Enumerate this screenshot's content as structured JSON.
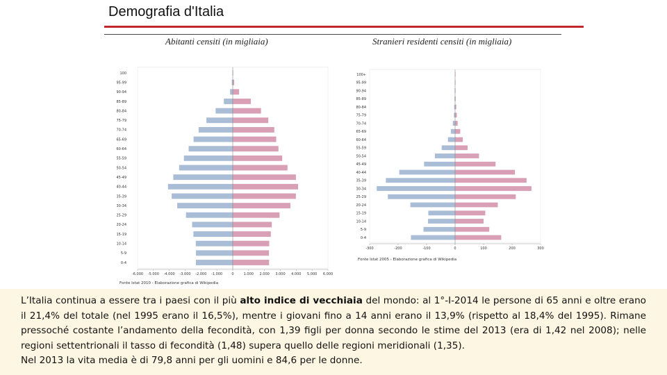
{
  "slide": {
    "title": "Demografia d'Italia"
  },
  "colors": {
    "male": "#a9bdd6",
    "female": "#d9a0b5",
    "accent_line": "#c0282d",
    "text_bg": "#fdf6e2"
  },
  "chart_data": [
    {
      "type": "bar",
      "orientation": "horizontal",
      "layout": "population-pyramid",
      "title": "Abitanti censiti (in migliaia)",
      "source": "Fonte Istat 2010 - Elaborazione grafica di Wikipedia",
      "categories": [
        "100",
        "95-99",
        "90-94",
        "85-89",
        "80-84",
        "75-79",
        "70-74",
        "65-69",
        "60-64",
        "55-59",
        "50-54",
        "45-49",
        "40-44",
        "35-39",
        "30-34",
        "25-29",
        "20-24",
        "15-19",
        "10-14",
        "5-9",
        "0-4"
      ],
      "series": [
        {
          "values": [
            -20,
            -60,
            -170,
            -560,
            -1080,
            -1660,
            -2150,
            -2470,
            -2780,
            -3080,
            -3380,
            -3750,
            -4080,
            -3850,
            -3500,
            -2950,
            -2560,
            -2480,
            -2330,
            -2320,
            -2320
          ]
        },
        {
          "values": [
            20,
            90,
            400,
            1140,
            1780,
            2240,
            2620,
            2740,
            2880,
            3120,
            3450,
            3980,
            4120,
            3980,
            3630,
            2950,
            2460,
            2400,
            2300,
            2280,
            2290
          ]
        }
      ],
      "xticks": [
        "-6.000",
        "-5.000",
        "-4.000",
        "-3.000",
        "-2.000",
        "-1.000",
        "0",
        "1.000",
        "2.000",
        "3.000",
        "4.000",
        "5.000",
        "6.000"
      ],
      "xlim": [
        -6000,
        6000
      ]
    },
    {
      "type": "bar",
      "orientation": "horizontal",
      "layout": "population-pyramid",
      "title": "Stranieri residenti censiti (in migliaia)",
      "source": "Fonte Istat 2005 - Elaborazione grafica di Wikipedia",
      "categories": [
        "100+",
        "95-99",
        "90-94",
        "85-89",
        "80-84",
        "75-79",
        "70-74",
        "65-69",
        "60-64",
        "55-59",
        "50-54",
        "45-49",
        "40-44",
        "35-39",
        "30-34",
        "25-29",
        "20-24",
        "15-19",
        "10-14",
        "5-9",
        "0-4"
      ],
      "series": [
        {
          "values": [
            -0.5,
            -1,
            -1.5,
            -2,
            -3,
            -4,
            -8,
            -15,
            -25,
            -47,
            -71,
            -109,
            -196,
            -243,
            -275,
            -236,
            -157,
            -94,
            -95,
            -111,
            -155
          ]
        },
        {
          "values": [
            0.5,
            1,
            1.5,
            2,
            4,
            6,
            9,
            18,
            27,
            44,
            84,
            142,
            210,
            251,
            268,
            213,
            150,
            106,
            100,
            120,
            162
          ]
        }
      ],
      "xticks": [
        "-300",
        "-200",
        "-100",
        "0",
        "100",
        "200",
        "300"
      ],
      "xlim": [
        -300,
        300
      ]
    }
  ],
  "text": {
    "p1_a": "L’Italia continua a essere tra i paesi con il più ",
    "p1_bold": "alto indice di vecchiaia",
    "p1_b": " del mondo: al 1°-I-2014 le persone di 65 anni e oltre erano il 21,4% del totale (nel 1995 erano il 16,5%), mentre i giovani fino a 14 anni erano il 13,9% (rispetto al 18,4% del 1995). Rimane pressoché costante l’andamento della fecondità, con 1,39 figli per donna secondo le stime del 2013 (era di 1,42 nel 2008); nelle regioni settentrionali il tasso di fecondità (1,48) supera quello delle regioni meridionali (1,35).",
    "p2": "Nel 2013 la vita media è di 79,8 anni per gli uomini e 84,6 per le donne."
  }
}
